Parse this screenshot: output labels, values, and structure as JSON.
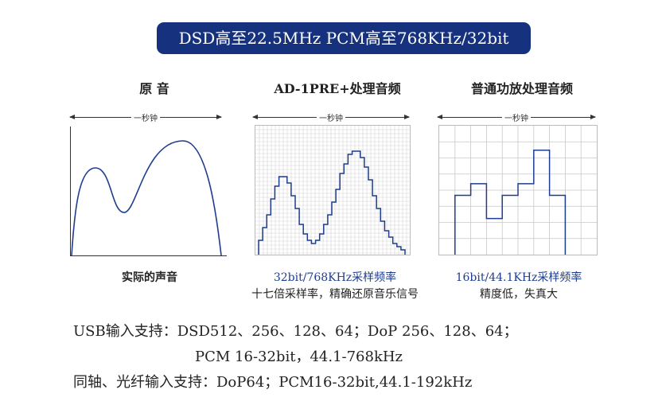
{
  "banner": "DSD高至22.5MHz  PCM高至768KHz/32bit",
  "panels": [
    {
      "title": "原  音",
      "span_label": "一秒钟",
      "caption_lines": [
        "实际的声音"
      ]
    },
    {
      "title": "AD-1PRE+处理音频",
      "span_label": "一秒钟",
      "caption_lines": [
        "32bit/768KHz采样频率",
        "十七倍采样率，精确还原音乐信号"
      ]
    },
    {
      "title": "普通功放处理音频",
      "span_label": "一秒钟",
      "caption_lines": [
        "16bit/44.1KHz采样频率",
        "精度低，失真大"
      ]
    }
  ],
  "support_lines": [
    "USB输入支持：DSD512、256、128、64；DoP 256、128、64；",
    "PCM 16-32bit，44.1-768kHz",
    "同轴、光纤输入支持：DoP64；PCM16-32bit,44.1-192kHz"
  ],
  "colors": {
    "banner_bg": "#16327e",
    "wave": "#1e3d8f",
    "fine_grid": "#d4d4d4",
    "coarse_grid": "#c8c8c8"
  },
  "coarse_steps": [
    0.46,
    0.55,
    0.28,
    0.46,
    0.55,
    0.81,
    0.46,
    0.0
  ]
}
